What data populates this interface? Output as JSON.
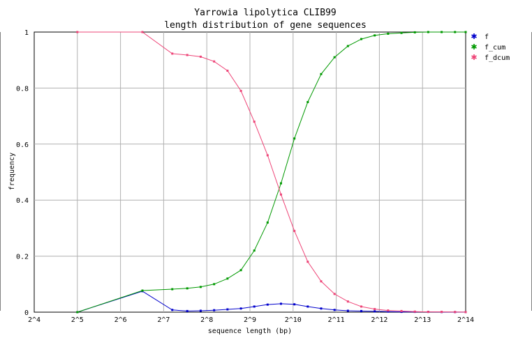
{
  "chart_data": {
    "type": "line",
    "title": "Yarrowia lipolytica CLIB99",
    "subtitle": "length distribution of gene sequences",
    "xlabel": "sequence length (bp)",
    "ylabel": "frequency",
    "x_scale": "log2",
    "xlim": [
      "2^4",
      "2^14"
    ],
    "ylim": [
      0,
      1
    ],
    "x_ticks": [
      "2^4",
      "2^5",
      "2^6",
      "2^7",
      "2^8",
      "2^9",
      "2^10",
      "2^11",
      "2^12",
      "2^13",
      "2^14"
    ],
    "y_ticks": [
      "0",
      "0.2",
      "0.4",
      "0.6",
      "0.8",
      "1"
    ],
    "grid": true,
    "legend": "right",
    "series": [
      {
        "name": "f",
        "color": "#0000cc",
        "x": [
          32,
          91,
          147,
          187,
          232,
          288,
          357,
          443,
          549,
          680,
          843,
          1046,
          1296,
          1607,
          1993,
          2471,
          3064,
          3799,
          4710,
          5840,
          7241,
          8978,
          11132,
          13802,
          16384
        ],
        "y": [
          0.0,
          0.075,
          0.008,
          0.004,
          0.005,
          0.007,
          0.01,
          0.013,
          0.02,
          0.027,
          0.03,
          0.028,
          0.02,
          0.013,
          0.008,
          0.005,
          0.004,
          0.003,
          0.002,
          0.001,
          0.001,
          0.001,
          0.0005,
          0.0003,
          0.0002
        ]
      },
      {
        "name": "f_cum",
        "color": "#009900",
        "x": [
          32,
          91,
          147,
          187,
          232,
          288,
          357,
          443,
          549,
          680,
          843,
          1046,
          1296,
          1607,
          1993,
          2471,
          3064,
          3799,
          4710,
          5840,
          7241,
          8978,
          11132,
          13802,
          16384
        ],
        "y": [
          0.0,
          0.077,
          0.082,
          0.085,
          0.09,
          0.1,
          0.12,
          0.15,
          0.22,
          0.32,
          0.46,
          0.62,
          0.75,
          0.85,
          0.91,
          0.95,
          0.975,
          0.988,
          0.994,
          0.997,
          0.999,
          1.0,
          1.0,
          1.0,
          1.0
        ]
      },
      {
        "name": "f_dcum",
        "color": "#ee4477",
        "x": [
          32,
          91,
          147,
          187,
          232,
          288,
          357,
          443,
          549,
          680,
          843,
          1046,
          1296,
          1607,
          1993,
          2471,
          3064,
          3799,
          4710,
          5840,
          7241,
          8978,
          11132,
          13802,
          16384
        ],
        "y": [
          1.0,
          1.0,
          0.923,
          0.918,
          0.912,
          0.895,
          0.862,
          0.79,
          0.68,
          0.56,
          0.42,
          0.29,
          0.18,
          0.11,
          0.065,
          0.038,
          0.02,
          0.011,
          0.006,
          0.004,
          0.002,
          0.001,
          0.001,
          0.0005,
          0.0002
        ]
      }
    ]
  }
}
